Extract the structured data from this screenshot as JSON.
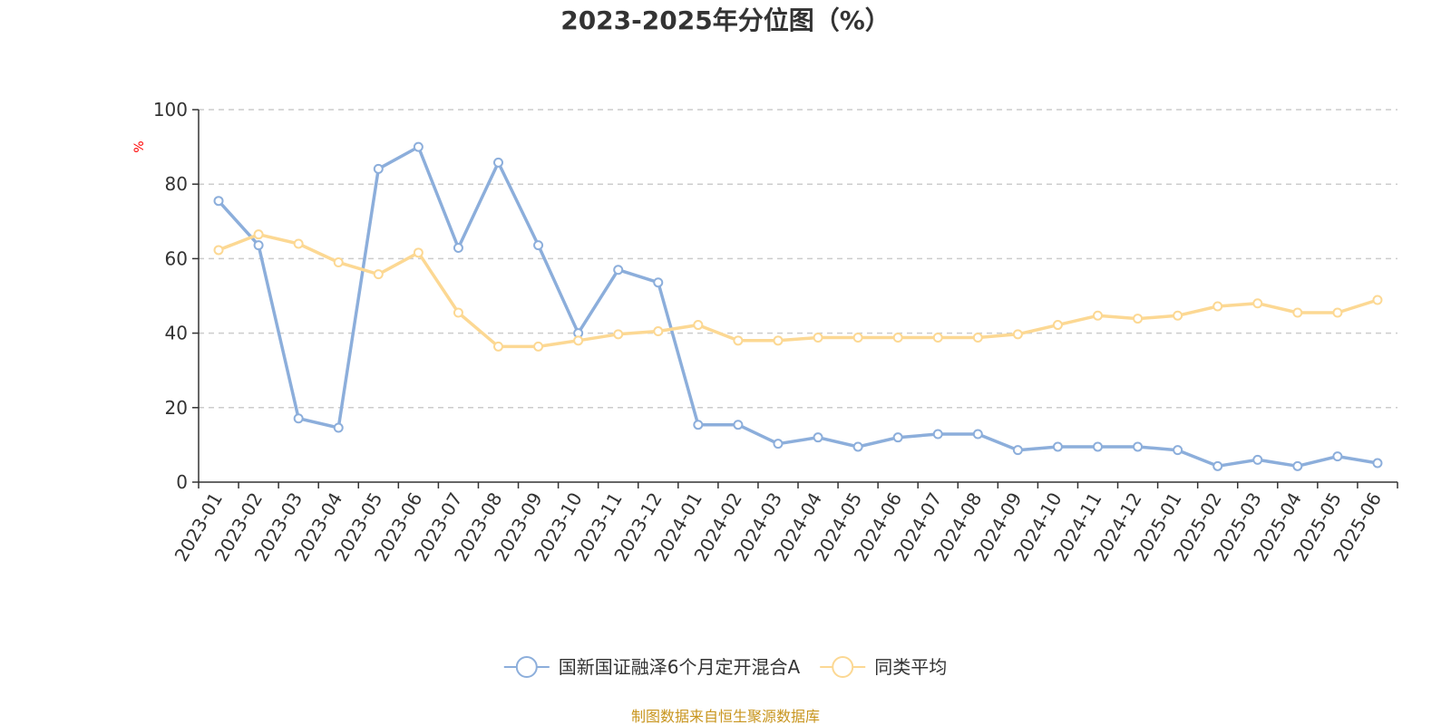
{
  "chart_data": {
    "type": "line",
    "title": "2023-2025年分位图（%）",
    "y_unit": "%",
    "ylim": [
      0,
      100
    ],
    "y_ticks": [
      0,
      20,
      40,
      60,
      80,
      100
    ],
    "grid": true,
    "legend_position": "bottom-center",
    "categories": [
      "2023-01",
      "2023-02",
      "2023-03",
      "2023-04",
      "2023-05",
      "2023-06",
      "2023-07",
      "2023-08",
      "2023-09",
      "2023-10",
      "2023-11",
      "2023-12",
      "2024-01",
      "2024-02",
      "2024-03",
      "2024-04",
      "2024-05",
      "2024-06",
      "2024-07",
      "2024-08",
      "2024-09",
      "2024-10",
      "2024-11",
      "2024-12",
      "2025-01",
      "2025-02",
      "2025-03",
      "2025-04",
      "2025-05",
      "2025-06"
    ],
    "series": [
      {
        "name": "国新国证融泽6个月定开混合A",
        "color": "#8caedb",
        "values": [
          75.5,
          63.6,
          17.1,
          14.6,
          84.1,
          90.0,
          62.9,
          85.8,
          63.6,
          40.0,
          57.0,
          53.6,
          15.4,
          15.4,
          10.3,
          12.0,
          9.5,
          12.0,
          12.9,
          12.9,
          8.6,
          9.5,
          9.5,
          9.5,
          8.6,
          4.3,
          6.0,
          4.3,
          6.9,
          5.1
        ]
      },
      {
        "name": "同类平均",
        "color": "#fcd893",
        "values": [
          62.3,
          66.5,
          64.0,
          59.0,
          55.8,
          61.6,
          45.5,
          36.4,
          36.4,
          38.0,
          39.7,
          40.5,
          42.2,
          38.0,
          38.0,
          38.8,
          38.8,
          38.8,
          38.8,
          38.8,
          39.7,
          42.2,
          44.7,
          43.9,
          44.7,
          47.2,
          48.0,
          45.5,
          45.5,
          48.9
        ]
      }
    ]
  },
  "source": "制图数据来自恒生聚源数据库",
  "colors": {
    "axis": "#333333",
    "grid": "#cccccc",
    "unit": "#ff0000",
    "source": "#c8951e"
  }
}
